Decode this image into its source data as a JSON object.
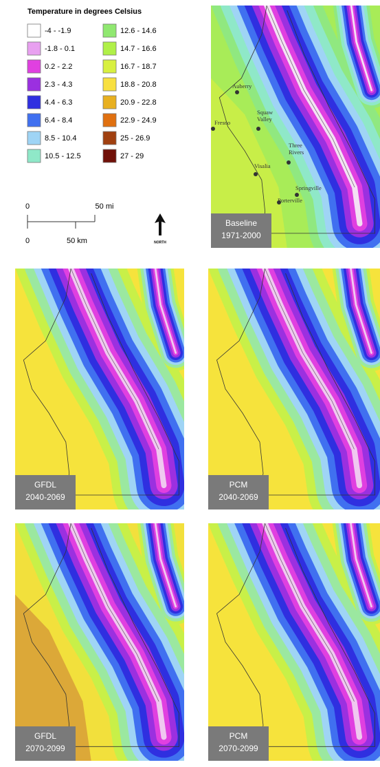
{
  "legend": {
    "title": "Temperature in degrees Celsius",
    "items": [
      {
        "label": "-4 - -1.9",
        "color": "#ffffff"
      },
      {
        "label": "-1.8 - 0.1",
        "color": "#e8a0f0"
      },
      {
        "label": "0.2 - 2.2",
        "color": "#e040e0"
      },
      {
        "label": "2.3 - 4.3",
        "color": "#9b30e0"
      },
      {
        "label": "4.4 - 6.3",
        "color": "#2f2fe0"
      },
      {
        "label": "6.4 - 8.4",
        "color": "#4070f0"
      },
      {
        "label": "8.5 - 10.4",
        "color": "#9fd4f5"
      },
      {
        "label": "10.5 - 12.5",
        "color": "#8fe8c8"
      },
      {
        "label": "12.6 - 14.6",
        "color": "#90e870"
      },
      {
        "label": "14.7 - 16.6",
        "color": "#b0f048"
      },
      {
        "label": "16.7 - 18.7",
        "color": "#d8f040"
      },
      {
        "label": "18.8 - 20.8",
        "color": "#f8e040"
      },
      {
        "label": "20.9 - 22.8",
        "color": "#e8b020"
      },
      {
        "label": "22.9 - 24.9",
        "color": "#e07010"
      },
      {
        "label": "25 - 26.9",
        "color": "#a04010"
      },
      {
        "label": "27 - 29",
        "color": "#701008"
      }
    ]
  },
  "scale_bar": {
    "miles": {
      "start": "0",
      "end": "50 mi"
    },
    "km": {
      "start": "0",
      "end": "50 km"
    }
  },
  "north_arrow": {
    "label": "NORTH"
  },
  "panels": [
    {
      "label": [
        "Baseline",
        "1971-2000"
      ],
      "towns": [
        {
          "label": [
            "Auberry"
          ]
        },
        {
          "label": [
            "Fresno"
          ]
        },
        {
          "label": [
            "Squaw",
            "Valley"
          ]
        },
        {
          "label": [
            "Three",
            "Rivers"
          ]
        },
        {
          "label": [
            "Visalia"
          ]
        },
        {
          "label": [
            "Springville"
          ]
        },
        {
          "label": [
            "Porterville"
          ]
        }
      ]
    },
    {
      "label": [
        "GFDL",
        "2040-2069"
      ]
    },
    {
      "label": [
        "PCM",
        "2040-2069"
      ]
    },
    {
      "label": [
        "GFDL",
        "2070-2099"
      ]
    },
    {
      "label": [
        "PCM",
        "2070-2099"
      ]
    }
  ]
}
